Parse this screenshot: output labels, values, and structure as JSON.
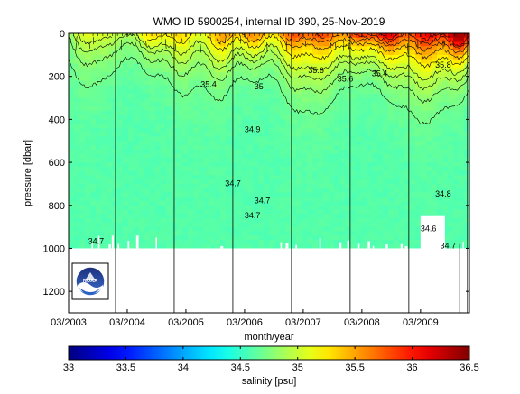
{
  "chart_data": {
    "type": "heatmap",
    "title": "WMO ID 5900254, internal ID 390, 25-Nov-2019",
    "xlabel": "month/year",
    "ylabel": "pressure [dbar]",
    "x_tick_labels": [
      "03/2003",
      "03/2004",
      "03/2005",
      "03/2006",
      "03/2007",
      "03/2008",
      "03/2009"
    ],
    "x_range": [
      "2003-03",
      "2010-01"
    ],
    "y_tick_labels": [
      "0",
      "200",
      "400",
      "600",
      "800",
      "1000",
      "1200"
    ],
    "y_ticks": [
      0,
      200,
      400,
      600,
      800,
      1000,
      1200
    ],
    "ylim": [
      0,
      1300
    ],
    "y_reversed": true,
    "colorbar": {
      "label": "salinity [psu]",
      "range": [
        33,
        36.5
      ],
      "tick_labels": [
        "33",
        "33.5",
        "34",
        "34.5",
        "35",
        "35.5",
        "36",
        "36.5"
      ],
      "ticks": [
        33,
        33.5,
        34,
        34.5,
        35,
        35.5,
        36,
        36.5
      ],
      "colormap": "jet"
    },
    "contour_labels": [
      {
        "text": "34.6",
        "x": "2009-03",
        "y": 920
      },
      {
        "text": "34.7",
        "x": "2009-07",
        "y": 1000
      },
      {
        "text": "34.7",
        "x": "2005-11",
        "y": 710
      },
      {
        "text": "34.7",
        "x": "2006-05",
        "y": 790
      },
      {
        "text": "34.7",
        "x": "2006-03",
        "y": 860
      },
      {
        "text": "34.8",
        "x": "2009-06",
        "y": 760
      },
      {
        "text": "34.7",
        "x": "2003-07",
        "y": 980
      },
      {
        "text": "35.6",
        "x": "2007-04",
        "y": 185
      },
      {
        "text": "35.6",
        "x": "2007-10",
        "y": 225
      },
      {
        "text": "35.4",
        "x": "2008-05",
        "y": 200
      },
      {
        "text": "35.8",
        "x": "2009-06",
        "y": 160
      },
      {
        "text": "35.4",
        "x": "2005-06",
        "y": 250
      },
      {
        "text": "35",
        "x": "2006-05",
        "y": 260
      },
      {
        "text": "34.9",
        "x": "2006-03",
        "y": 460
      }
    ],
    "surface_salinity": 34.9,
    "max_salinity": 36.3,
    "deep_salinity": 34.6,
    "colors": {
      "background": "#ffffff",
      "missing_data": "#ffffff"
    }
  },
  "logo": {
    "text": "NOAA"
  }
}
